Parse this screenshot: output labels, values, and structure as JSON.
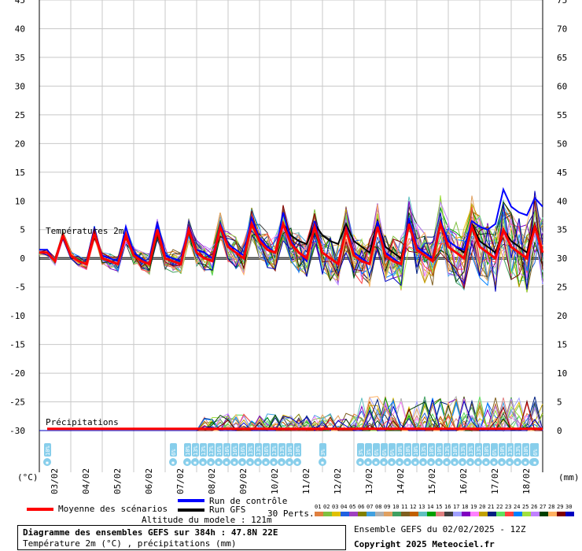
{
  "chart_data": {
    "type": "line",
    "title": "Diagramme des ensembles GEFS sur 384h : 47.8N 22E",
    "subtitle": "Température 2m (°C) , précipitations (mm)",
    "left_axis": {
      "unit": "(°C)",
      "ticks": [
        45,
        40,
        35,
        30,
        25,
        20,
        15,
        10,
        5,
        0,
        -5,
        -10,
        -15,
        -20,
        -25,
        -30
      ],
      "range": [
        -30,
        45
      ]
    },
    "right_axis": {
      "unit": "(mm)",
      "ticks": [
        75,
        70,
        65,
        60,
        55,
        50,
        45,
        40,
        35,
        30,
        25,
        20,
        15,
        10,
        5,
        0
      ],
      "range": [
        0,
        75
      ]
    },
    "x_ticks": [
      "03/02",
      "04/02",
      "05/02",
      "06/02",
      "07/02",
      "08/02",
      "09/02",
      "10/02",
      "11/02",
      "12/02",
      "13/02",
      "14/02",
      "15/02",
      "16/02",
      "17/02",
      "18/02"
    ],
    "panel_labels": {
      "temperature": "Températures 2m",
      "precipitation": "Précipitations"
    },
    "x_hours": [
      0,
      6,
      12,
      18,
      24,
      30,
      36,
      42,
      48,
      54,
      60,
      66,
      72,
      78,
      84,
      90,
      96,
      102,
      108,
      114,
      120,
      126,
      132,
      138,
      144,
      150,
      156,
      162,
      168,
      174,
      180,
      186,
      192,
      198,
      204,
      210,
      216,
      222,
      228,
      234,
      240,
      246,
      252,
      258,
      264,
      270,
      276,
      282,
      288,
      294,
      300,
      306,
      312,
      318,
      324,
      330,
      336,
      342,
      348,
      354,
      360,
      366,
      372,
      378,
      384
    ],
    "series": [
      {
        "name": "Moyenne des scénarios",
        "color": "#ff0000",
        "values": [
          1,
          1,
          -0.5,
          4,
          0.5,
          -0.5,
          -1,
          4.5,
          0,
          -0.5,
          -1,
          4,
          0.5,
          -0.5,
          -1,
          5,
          0,
          -0.5,
          -1,
          5,
          1,
          0,
          -0.5,
          5.5,
          2,
          1,
          0,
          6,
          3,
          1.5,
          1,
          6,
          2.5,
          1,
          0,
          5.5,
          1,
          0,
          -1,
          5,
          0.5,
          -0.5,
          -1,
          5.5,
          0.5,
          -0.5,
          -1,
          6,
          1.5,
          0.5,
          -0.5,
          6,
          2,
          1,
          0,
          5.5,
          2,
          1,
          0,
          5,
          2,
          1,
          0,
          5.5,
          1
        ]
      },
      {
        "name": "Run de contrôle",
        "color": "#0000ff",
        "values": [
          1.5,
          1.5,
          -0.5,
          4,
          0.5,
          -0.5,
          -1,
          4.5,
          0.5,
          0,
          -0.5,
          5.5,
          1,
          0,
          -1,
          6,
          0.5,
          0,
          -0.5,
          5.5,
          1.5,
          1,
          0,
          6,
          2.5,
          1.5,
          0.5,
          7,
          3.5,
          2,
          1,
          8,
          3,
          1,
          -0.5,
          6.5,
          1,
          0,
          -1,
          5.5,
          1,
          0,
          -1,
          6.5,
          1,
          0,
          -1,
          7,
          2,
          1,
          0,
          6.5,
          3,
          2,
          1.5,
          6.5,
          5.5,
          5,
          6,
          12,
          9,
          8,
          7.5,
          10.5,
          9
        ]
      },
      {
        "name": "Run GFS",
        "color": "#000000",
        "values": [
          1,
          1,
          -0.5,
          4,
          0.5,
          -0.5,
          -1,
          4.5,
          0,
          -0.5,
          -1,
          4,
          0.5,
          -0.5,
          -1,
          5,
          0,
          -0.5,
          -1,
          5,
          1,
          0,
          -0.5,
          5.5,
          2,
          1,
          0,
          6,
          3,
          1.5,
          1,
          6,
          4,
          3,
          2.5,
          6,
          4,
          3,
          2.5,
          6,
          3,
          2,
          1,
          6.5,
          2,
          1,
          0,
          6,
          2,
          1,
          0,
          6.5,
          3,
          2,
          1,
          6,
          3,
          2,
          1,
          5,
          3,
          2,
          1,
          6,
          1
        ]
      }
    ],
    "precip_series": {
      "name": "Moyenne des scénarios (précipitations)",
      "color": "#ff0000",
      "approx_mm": 0.3
    },
    "snow_markers": [
      "10%",
      "6%",
      "10%",
      "13%",
      "13%",
      "13%",
      "16%",
      "16%",
      "16%",
      "16%",
      "13%",
      "13%",
      "16%",
      "13%",
      "13%",
      "10%",
      "10%",
      "3%",
      "3%",
      "3%",
      "6%",
      "6%",
      "6%",
      "10%",
      "10%",
      "10%",
      "13%",
      "10%",
      "10%",
      "13%",
      "10%",
      "13%",
      "13%",
      "13%",
      "10%",
      "6%",
      "10%",
      "13%",
      "13%",
      "10%",
      "3%",
      "6%",
      "10%",
      "6%"
    ],
    "grid": true
  },
  "legend": {
    "mean": "Moyenne des scénarios",
    "control": "Run de contrôle",
    "gfs": "Run GFS",
    "perts": "30 Perts.",
    "altitude": "Altitude du modele : 121m",
    "palette": [
      "01",
      "02",
      "03",
      "04",
      "05",
      "06",
      "07",
      "08",
      "09",
      "10",
      "11",
      "12",
      "13",
      "14",
      "15",
      "16",
      "17",
      "18",
      "19",
      "20",
      "21",
      "22",
      "23",
      "24",
      "25",
      "26",
      "27",
      "28",
      "29",
      "30"
    ],
    "palette_colors": [
      "#e08040",
      "#80c040",
      "#e0c000",
      "#2060e0",
      "#a040c0",
      "#808000",
      "#40a0e0",
      "#b0b0b0",
      "#e0a060",
      "#40a060",
      "#806020",
      "#c06000",
      "#60c0c0",
      "#00a000",
      "#e08080",
      "#404040",
      "#a0a0ff",
      "#8000c0",
      "#ff80ff",
      "#c0a000",
      "#002080",
      "#60e060",
      "#ff4040",
      "#0080ff",
      "#a0e040",
      "#c080ff",
      "#004000",
      "#ffb060",
      "#800000",
      "#0000c0"
    ]
  },
  "footer": {
    "title": "Diagramme des ensembles GEFS sur 384h : 47.8N 22E",
    "subtitle": "Température 2m (°C) , précipitations (mm)",
    "run": "Ensemble GEFS du 02/02/2025 - 12Z",
    "copyright": "Copyright 2025 Meteociel.fr"
  }
}
